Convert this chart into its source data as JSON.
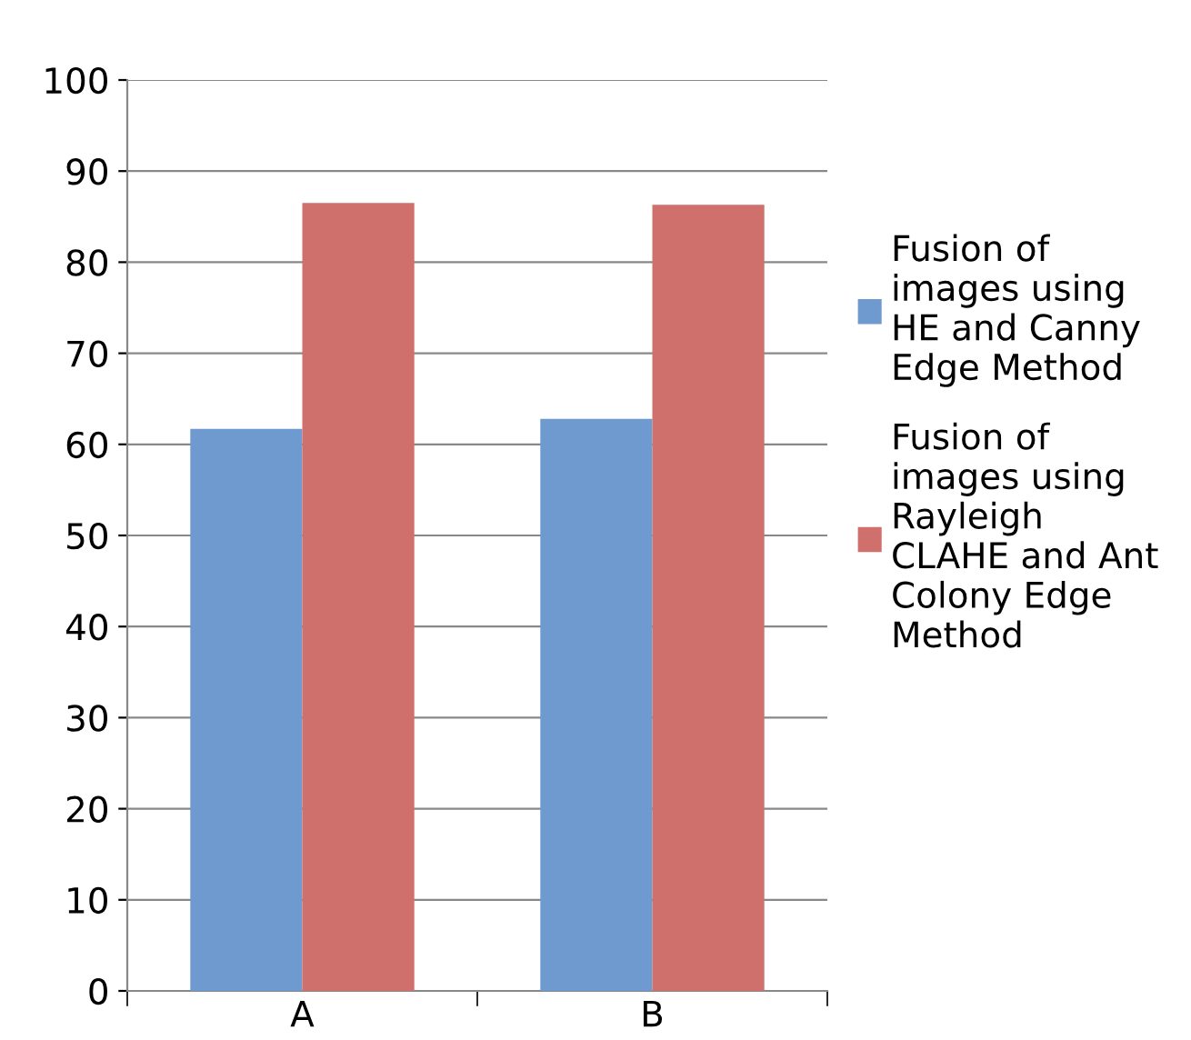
{
  "chart_data": {
    "type": "bar",
    "categories": [
      "A",
      "B"
    ],
    "series": [
      {
        "name": "Fusion of images using HE and Canny Edge Method",
        "color": "#6f9acf",
        "values": [
          61.7,
          62.8
        ]
      },
      {
        "name": "Fusion of images using Rayleigh CLAHE and Ant Colony Edge Method",
        "color": "#d0706c",
        "values": [
          86.5,
          86.3
        ]
      }
    ],
    "ylim": [
      0,
      100
    ],
    "yticks": [
      0,
      10,
      20,
      30,
      40,
      50,
      60,
      70,
      80,
      90,
      100
    ],
    "grid": "y",
    "legend": "right"
  }
}
